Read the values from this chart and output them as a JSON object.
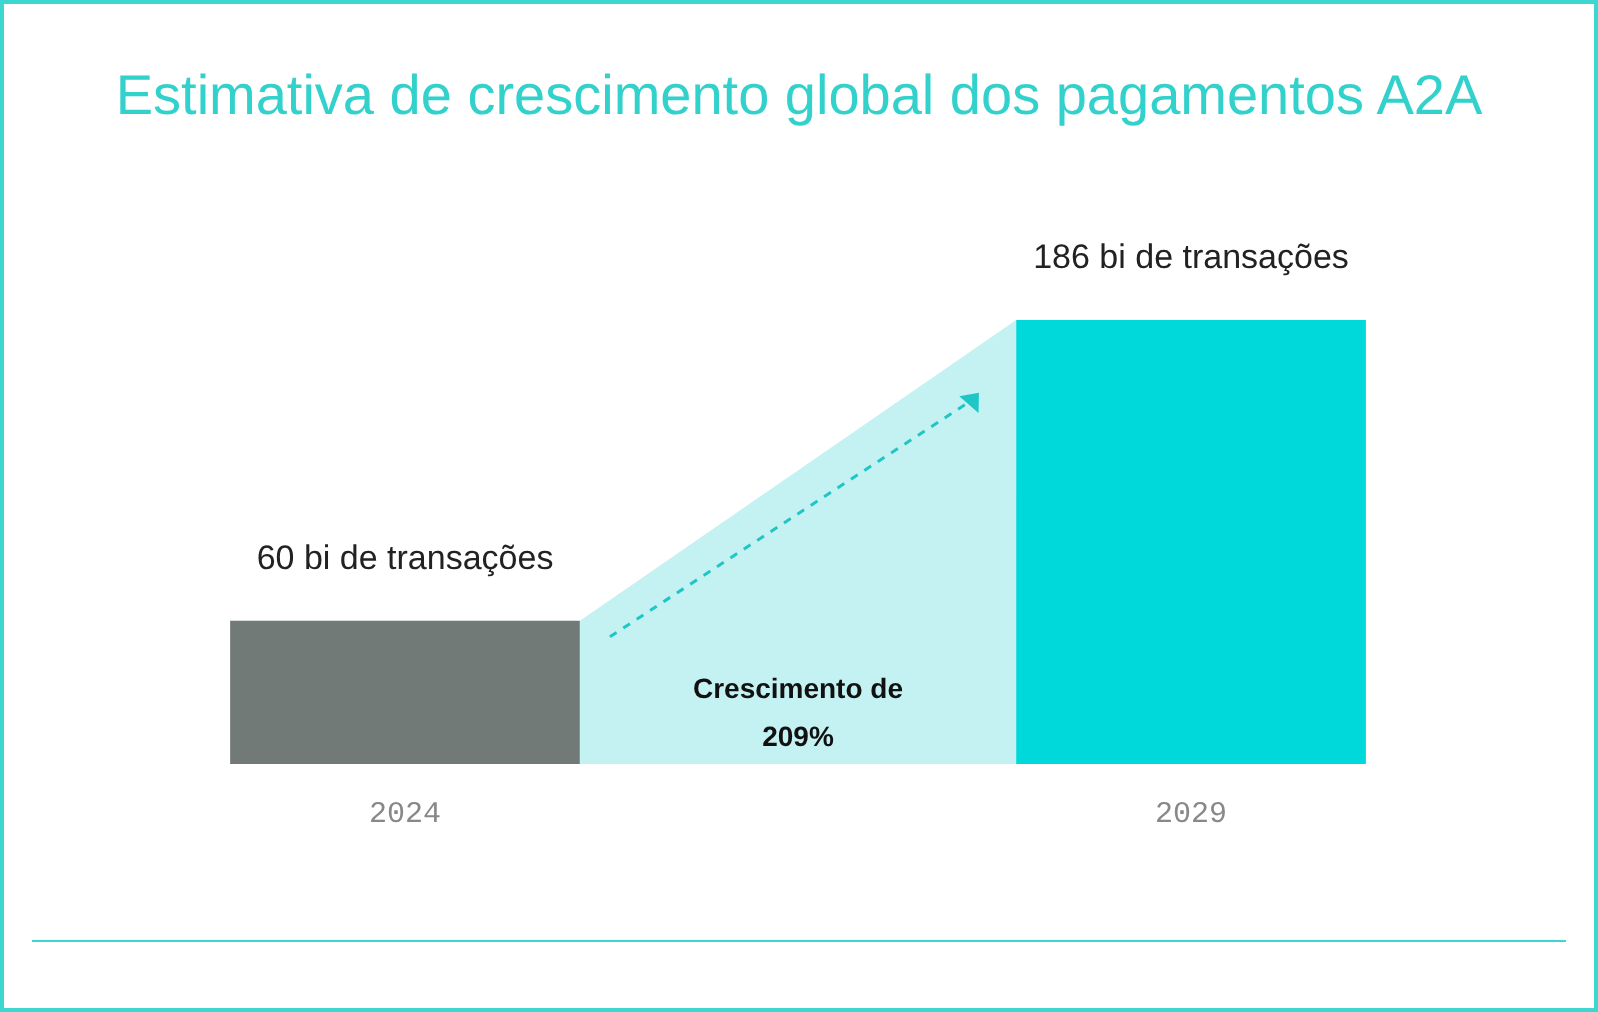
{
  "chart_data": {
    "type": "bar",
    "title": "Estimativa de crescimento global dos pagamentos A2A",
    "categories": [
      "2024",
      "2029"
    ],
    "values": [
      60,
      186
    ],
    "colors": [
      "#727a77",
      "#00d9d9"
    ],
    "value_labels": [
      "60 bi de transações",
      "186 bi de transações"
    ],
    "annotations": [
      "Crescimento de 209%"
    ]
  }
}
